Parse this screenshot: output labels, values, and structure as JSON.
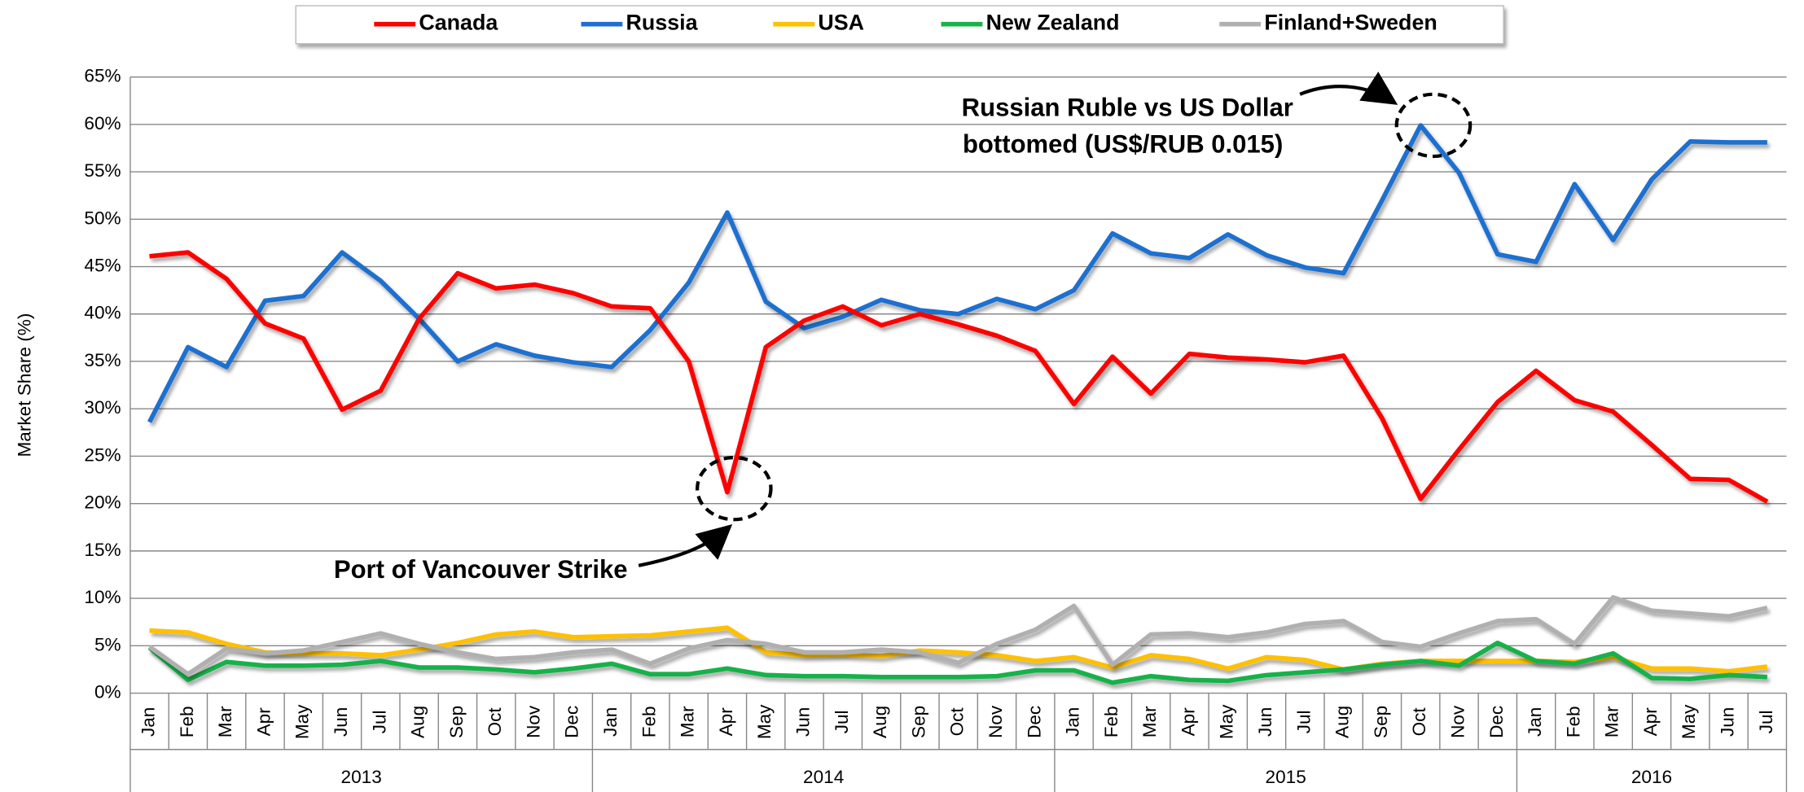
{
  "chart_data": {
    "type": "line",
    "y_label": "Market Share (%)",
    "groups": [
      {
        "name": "2013",
        "months": [
          "Jan",
          "Feb",
          "Mar",
          "Apr",
          "May",
          "Jun",
          "Jul",
          "Aug",
          "Sep",
          "Oct",
          "Nov",
          "Dec"
        ]
      },
      {
        "name": "2014",
        "months": [
          "Jan",
          "Feb",
          "Mar",
          "Apr",
          "May",
          "Jun",
          "Jul",
          "Aug",
          "Sep",
          "Oct",
          "Nov",
          "Dec"
        ]
      },
      {
        "name": "2015",
        "months": [
          "Jan",
          "Feb",
          "Mar",
          "Apr",
          "May",
          "Jun",
          "Jul",
          "Aug",
          "Sep",
          "Oct",
          "Nov",
          "Dec"
        ]
      },
      {
        "name": "2016",
        "months": [
          "Jan",
          "Feb",
          "Mar",
          "Apr",
          "May",
          "Jun",
          "Jul"
        ]
      }
    ],
    "series": [
      {
        "name": "Canada",
        "color": "#ff0000",
        "values": [
          46.1,
          46.5,
          43.7,
          39,
          37.4,
          29.9,
          31.9,
          39.5,
          44.3,
          42.7,
          43.1,
          42.2,
          40.8,
          40.6,
          35,
          21.2,
          36.5,
          39.3,
          40.8,
          38.8,
          40,
          38.9,
          37.7,
          36.1,
          30.5,
          35.5,
          31.6,
          35.8,
          35.4,
          35.2,
          34.9,
          35.6,
          29,
          20.5,
          25.7,
          30.7,
          34,
          30.9,
          29.7,
          26.2,
          22.6,
          22.5,
          20.2
        ]
      },
      {
        "name": "Russia",
        "color": "#1f6fd0",
        "values": [
          28.6,
          36.5,
          34.4,
          41.4,
          41.9,
          46.5,
          43.5,
          39.5,
          35,
          36.8,
          35.6,
          34.9,
          34.4,
          38.3,
          43.3,
          50.7,
          41.3,
          38.5,
          39.7,
          41.5,
          40.4,
          40,
          41.6,
          40.5,
          42.5,
          48.5,
          46.4,
          45.9,
          48.4,
          46.2,
          44.9,
          44.3,
          52,
          59.9,
          54.9,
          46.3,
          45.5,
          53.7,
          47.8,
          54.2,
          58.2,
          58.1,
          58.1
        ]
      },
      {
        "name": "USA",
        "color": "#ffc000",
        "values": [
          6.6,
          6.4,
          5.2,
          4.3,
          4.2,
          4.2,
          4,
          4.6,
          5.3,
          6.2,
          6.5,
          5.9,
          6,
          6.1,
          6.5,
          6.9,
          4.3,
          4,
          4.1,
          3.9,
          4.5,
          4.3,
          4,
          3.4,
          3.8,
          2.7,
          4,
          3.6,
          2.6,
          3.8,
          3.5,
          2.5,
          3.1,
          3.4,
          3.4,
          3.4,
          3.4,
          3.3,
          3.8,
          2.6,
          2.6,
          2.3,
          2.8
        ]
      },
      {
        "name": "New Zealand",
        "color": "#17b24a",
        "values": [
          4.8,
          1.4,
          3.3,
          2.9,
          2.9,
          3,
          3.4,
          2.7,
          2.7,
          2.5,
          2.2,
          2.6,
          3.1,
          2,
          2,
          2.6,
          1.9,
          1.8,
          1.8,
          1.7,
          1.7,
          1.7,
          1.8,
          2.4,
          2.4,
          1.1,
          1.8,
          1.4,
          1.3,
          1.9,
          2.2,
          2.5,
          3,
          3.4,
          2.9,
          5.3,
          3.4,
          3.1,
          4.2,
          1.6,
          1.5,
          1.9,
          1.7
        ]
      },
      {
        "name": "Finland+Sweden",
        "color": "#b0b0b0",
        "values": [
          4.9,
          2,
          4.7,
          4.2,
          4.5,
          5.4,
          6.3,
          5.2,
          4.3,
          3.6,
          3.8,
          4.3,
          4.6,
          3.1,
          4.7,
          5.6,
          5.2,
          4.3,
          4.3,
          4.6,
          4.3,
          3.2,
          5.2,
          6.7,
          9.2,
          3,
          6.2,
          6.3,
          5.9,
          6.4,
          7.3,
          7.6,
          5.4,
          4.9,
          6.3,
          7.6,
          7.8,
          5.2,
          10.1,
          8.7,
          8.4,
          8.1,
          9
        ]
      }
    ],
    "ylim": [
      0,
      65
    ],
    "yticks": [
      {
        "value": 0,
        "label": "0%"
      },
      {
        "value": 5,
        "label": "5%"
      },
      {
        "value": 10,
        "label": "10%"
      },
      {
        "value": 15,
        "label": "15%"
      },
      {
        "value": 20,
        "label": "20%"
      },
      {
        "value": 25,
        "label": "25%"
      },
      {
        "value": 30,
        "label": "30%"
      },
      {
        "value": 35,
        "label": "35%"
      },
      {
        "value": 40,
        "label": "40%"
      },
      {
        "value": 45,
        "label": "45%"
      },
      {
        "value": 50,
        "label": "50%"
      },
      {
        "value": 55,
        "label": "55%"
      },
      {
        "value": 60,
        "label": "60%"
      },
      {
        "value": 65,
        "label": "65%"
      }
    ],
    "grid": true,
    "legend": "top",
    "annotations": [
      {
        "lines": [
          "Russian Ruble vs US Dollar",
          "bottomed (US$/RUB 0.015)"
        ]
      },
      {
        "lines": [
          "Port of Vancouver Strike"
        ]
      }
    ]
  }
}
